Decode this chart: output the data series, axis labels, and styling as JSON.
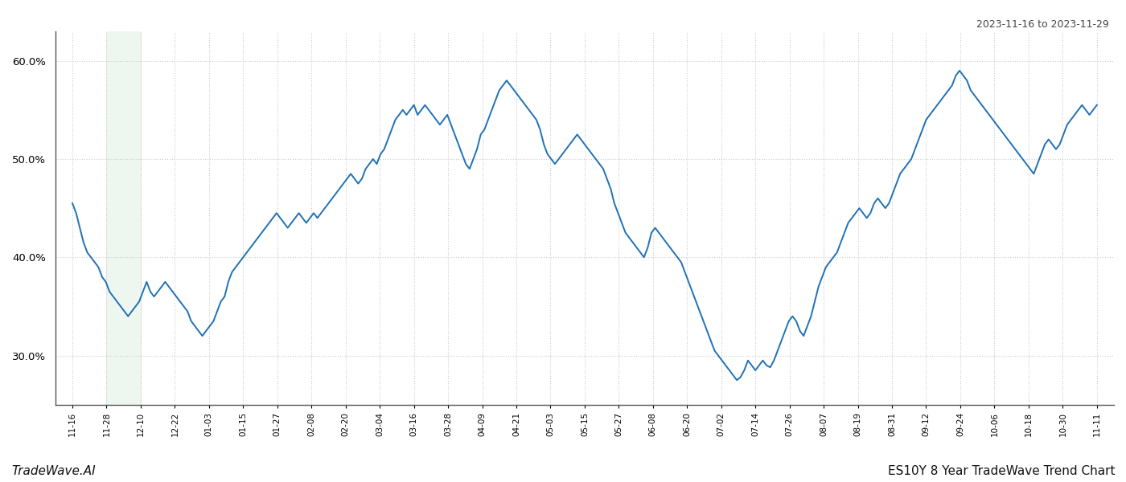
{
  "title_top_right": "2023-11-16 to 2023-11-29",
  "title_bottom_left": "TradeWave.AI",
  "title_bottom_right": "ES10Y 8 Year TradeWave Trend Chart",
  "line_color": "#2171b5",
  "line_width": 1.4,
  "highlight_color": "#e8f5e9",
  "highlight_alpha": 0.7,
  "highlight_xstart_label": 1,
  "highlight_xend_label": 2,
  "background_color": "#ffffff",
  "grid_color": "#cccccc",
  "grid_style": ":",
  "ylim": [
    25.0,
    63.0
  ],
  "yticks": [
    30.0,
    40.0,
    50.0,
    60.0
  ],
  "x_labels": [
    "11-16",
    "11-28",
    "12-10",
    "12-22",
    "01-03",
    "01-15",
    "01-27",
    "02-08",
    "02-20",
    "03-04",
    "03-16",
    "03-28",
    "04-09",
    "04-21",
    "05-03",
    "05-15",
    "05-27",
    "06-08",
    "06-20",
    "07-02",
    "07-14",
    "07-26",
    "08-07",
    "08-19",
    "08-31",
    "09-12",
    "09-24",
    "10-06",
    "10-18",
    "10-30",
    "11-11"
  ],
  "curve_y": [
    45.5,
    44.5,
    43.0,
    41.5,
    40.5,
    40.0,
    39.5,
    39.0,
    38.0,
    37.5,
    36.5,
    36.0,
    35.5,
    35.0,
    34.5,
    34.0,
    34.5,
    35.0,
    35.5,
    36.5,
    37.5,
    36.5,
    36.0,
    36.5,
    37.0,
    37.5,
    37.0,
    36.5,
    36.0,
    35.5,
    35.0,
    34.5,
    33.5,
    33.0,
    32.5,
    32.0,
    32.5,
    33.0,
    33.5,
    34.5,
    35.5,
    36.0,
    37.5,
    38.5,
    39.0,
    39.5,
    40.0,
    40.5,
    41.0,
    41.5,
    42.0,
    42.5,
    43.0,
    43.5,
    44.0,
    44.5,
    44.0,
    43.5,
    43.0,
    43.5,
    44.0,
    44.5,
    44.0,
    43.5,
    44.0,
    44.5,
    44.0,
    44.5,
    45.0,
    45.5,
    46.0,
    46.5,
    47.0,
    47.5,
    48.0,
    48.5,
    48.0,
    47.5,
    48.0,
    49.0,
    49.5,
    50.0,
    49.5,
    50.5,
    51.0,
    52.0,
    53.0,
    54.0,
    54.5,
    55.0,
    54.5,
    55.0,
    55.5,
    54.5,
    55.0,
    55.5,
    55.0,
    54.5,
    54.0,
    53.5,
    54.0,
    54.5,
    53.5,
    52.5,
    51.5,
    50.5,
    49.5,
    49.0,
    50.0,
    51.0,
    52.5,
    53.0,
    54.0,
    55.0,
    56.0,
    57.0,
    57.5,
    58.0,
    57.5,
    57.0,
    56.5,
    56.0,
    55.5,
    55.0,
    54.5,
    54.0,
    53.0,
    51.5,
    50.5,
    50.0,
    49.5,
    50.0,
    50.5,
    51.0,
    51.5,
    52.0,
    52.5,
    52.0,
    51.5,
    51.0,
    50.5,
    50.0,
    49.5,
    49.0,
    48.0,
    47.0,
    45.5,
    44.5,
    43.5,
    42.5,
    42.0,
    41.5,
    41.0,
    40.5,
    40.0,
    41.0,
    42.5,
    43.0,
    42.5,
    42.0,
    41.5,
    41.0,
    40.5,
    40.0,
    39.5,
    38.5,
    37.5,
    36.5,
    35.5,
    34.5,
    33.5,
    32.5,
    31.5,
    30.5,
    30.0,
    29.5,
    29.0,
    28.5,
    28.0,
    27.5,
    27.8,
    28.5,
    29.5,
    29.0,
    28.5,
    29.0,
    29.5,
    29.0,
    28.8,
    29.5,
    30.5,
    31.5,
    32.5,
    33.5,
    34.0,
    33.5,
    32.5,
    32.0,
    33.0,
    34.0,
    35.5,
    37.0,
    38.0,
    39.0,
    39.5,
    40.0,
    40.5,
    41.5,
    42.5,
    43.5,
    44.0,
    44.5,
    45.0,
    44.5,
    44.0,
    44.5,
    45.5,
    46.0,
    45.5,
    45.0,
    45.5,
    46.5,
    47.5,
    48.5,
    49.0,
    49.5,
    50.0,
    51.0,
    52.0,
    53.0,
    54.0,
    54.5,
    55.0,
    55.5,
    56.0,
    56.5,
    57.0,
    57.5,
    58.5,
    59.0,
    58.5,
    58.0,
    57.0,
    56.5,
    56.0,
    55.5,
    55.0,
    54.5,
    54.0,
    53.5,
    53.0,
    52.5,
    52.0,
    51.5,
    51.0,
    50.5,
    50.0,
    49.5,
    49.0,
    48.5,
    49.5,
    50.5,
    51.5,
    52.0,
    51.5,
    51.0,
    51.5,
    52.5,
    53.5,
    54.0,
    54.5,
    55.0,
    55.5,
    55.0,
    54.5,
    55.0,
    55.5
  ]
}
